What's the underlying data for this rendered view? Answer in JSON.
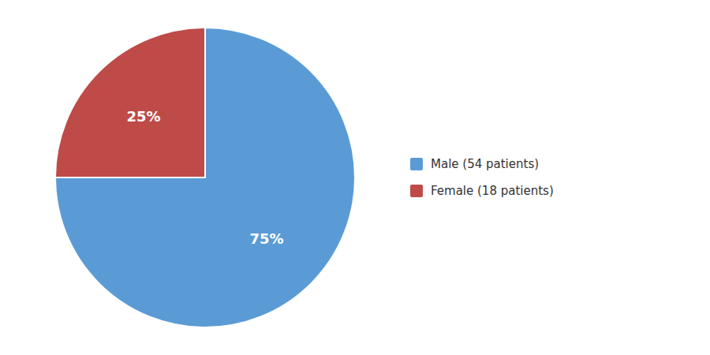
{
  "chart_data": {
    "type": "pie",
    "categories": [
      "Male (54 patients)",
      "Female (18 patients)"
    ],
    "values": [
      75,
      25
    ],
    "value_labels": [
      "75%",
      "25%"
    ],
    "colors": [
      "#5b9bd5",
      "#be4b48"
    ],
    "data_labels": true,
    "legend": "right"
  }
}
